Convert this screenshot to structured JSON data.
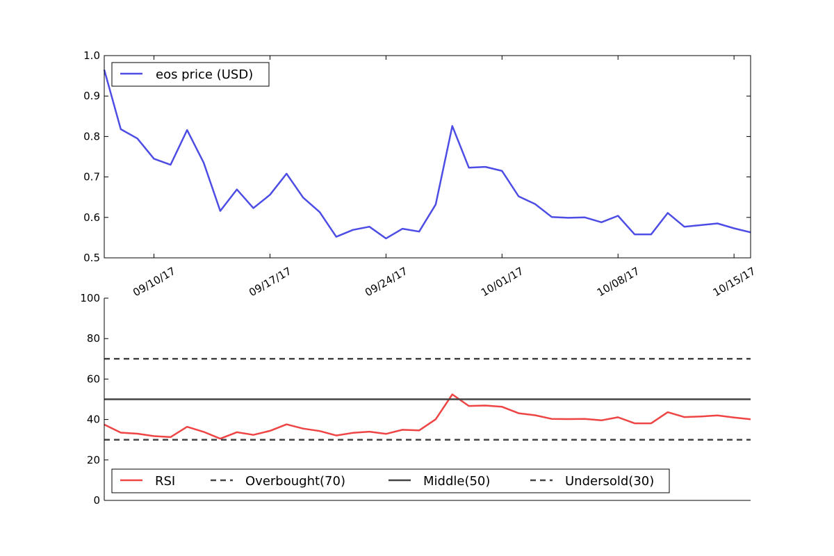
{
  "chart_data": [
    {
      "type": "line",
      "title": "",
      "xlabel": "",
      "ylabel": "",
      "x_start": "09/07/17",
      "x_tick_labels": [
        "09/10/17",
        "09/17/17",
        "09/24/17",
        "10/01/17",
        "10/08/17",
        "10/15/17"
      ],
      "y_ticks": [
        "0.5",
        "0.6",
        "0.7",
        "0.8",
        "0.9",
        "1.0"
      ],
      "ylim": [
        0.5,
        1.0
      ],
      "legend_position": "top-left",
      "series": [
        {
          "name": "eos price (USD)",
          "color": "#4d4de6",
          "values": [
            0.965,
            0.818,
            0.795,
            0.745,
            0.73,
            0.816,
            0.735,
            0.616,
            0.669,
            0.623,
            0.656,
            0.708,
            0.649,
            0.613,
            0.552,
            0.569,
            0.577,
            0.548,
            0.572,
            0.565,
            0.632,
            0.826,
            0.723,
            0.725,
            0.715,
            0.652,
            0.633,
            0.601,
            0.599,
            0.6,
            0.588,
            0.604,
            0.558,
            0.558,
            0.611,
            0.577,
            0.581,
            0.585,
            0.573,
            0.563
          ]
        }
      ]
    },
    {
      "type": "line",
      "title": "",
      "xlabel": "",
      "ylabel": "",
      "y_ticks": [
        "0",
        "20",
        "40",
        "60",
        "80",
        "100"
      ],
      "ylim": [
        0,
        100
      ],
      "legend_position": "bottom-left",
      "series": [
        {
          "name": "RSI",
          "color": "#ee4444",
          "style": "solid",
          "values": [
            37.5,
            33.5,
            33.0,
            31.8,
            31.3,
            36.4,
            33.9,
            30.5,
            33.7,
            32.4,
            34.4,
            37.6,
            35.5,
            34.3,
            32.1,
            33.4,
            34.0,
            32.9,
            34.9,
            34.6,
            40.1,
            52.4,
            46.7,
            46.9,
            46.3,
            43.1,
            42.1,
            40.3,
            40.2,
            40.3,
            39.6,
            41.1,
            38.1,
            38.1,
            43.6,
            41.2,
            41.5,
            42.0,
            41.0,
            40.1
          ]
        },
        {
          "name": "Overbought(70)",
          "color": "#444444",
          "style": "dashed",
          "level": 70
        },
        {
          "name": "Middle(50)",
          "color": "#444444",
          "style": "solid",
          "level": 50
        },
        {
          "name": "Undersold(30)",
          "color": "#444444",
          "style": "dashed",
          "level": 30
        }
      ]
    }
  ]
}
